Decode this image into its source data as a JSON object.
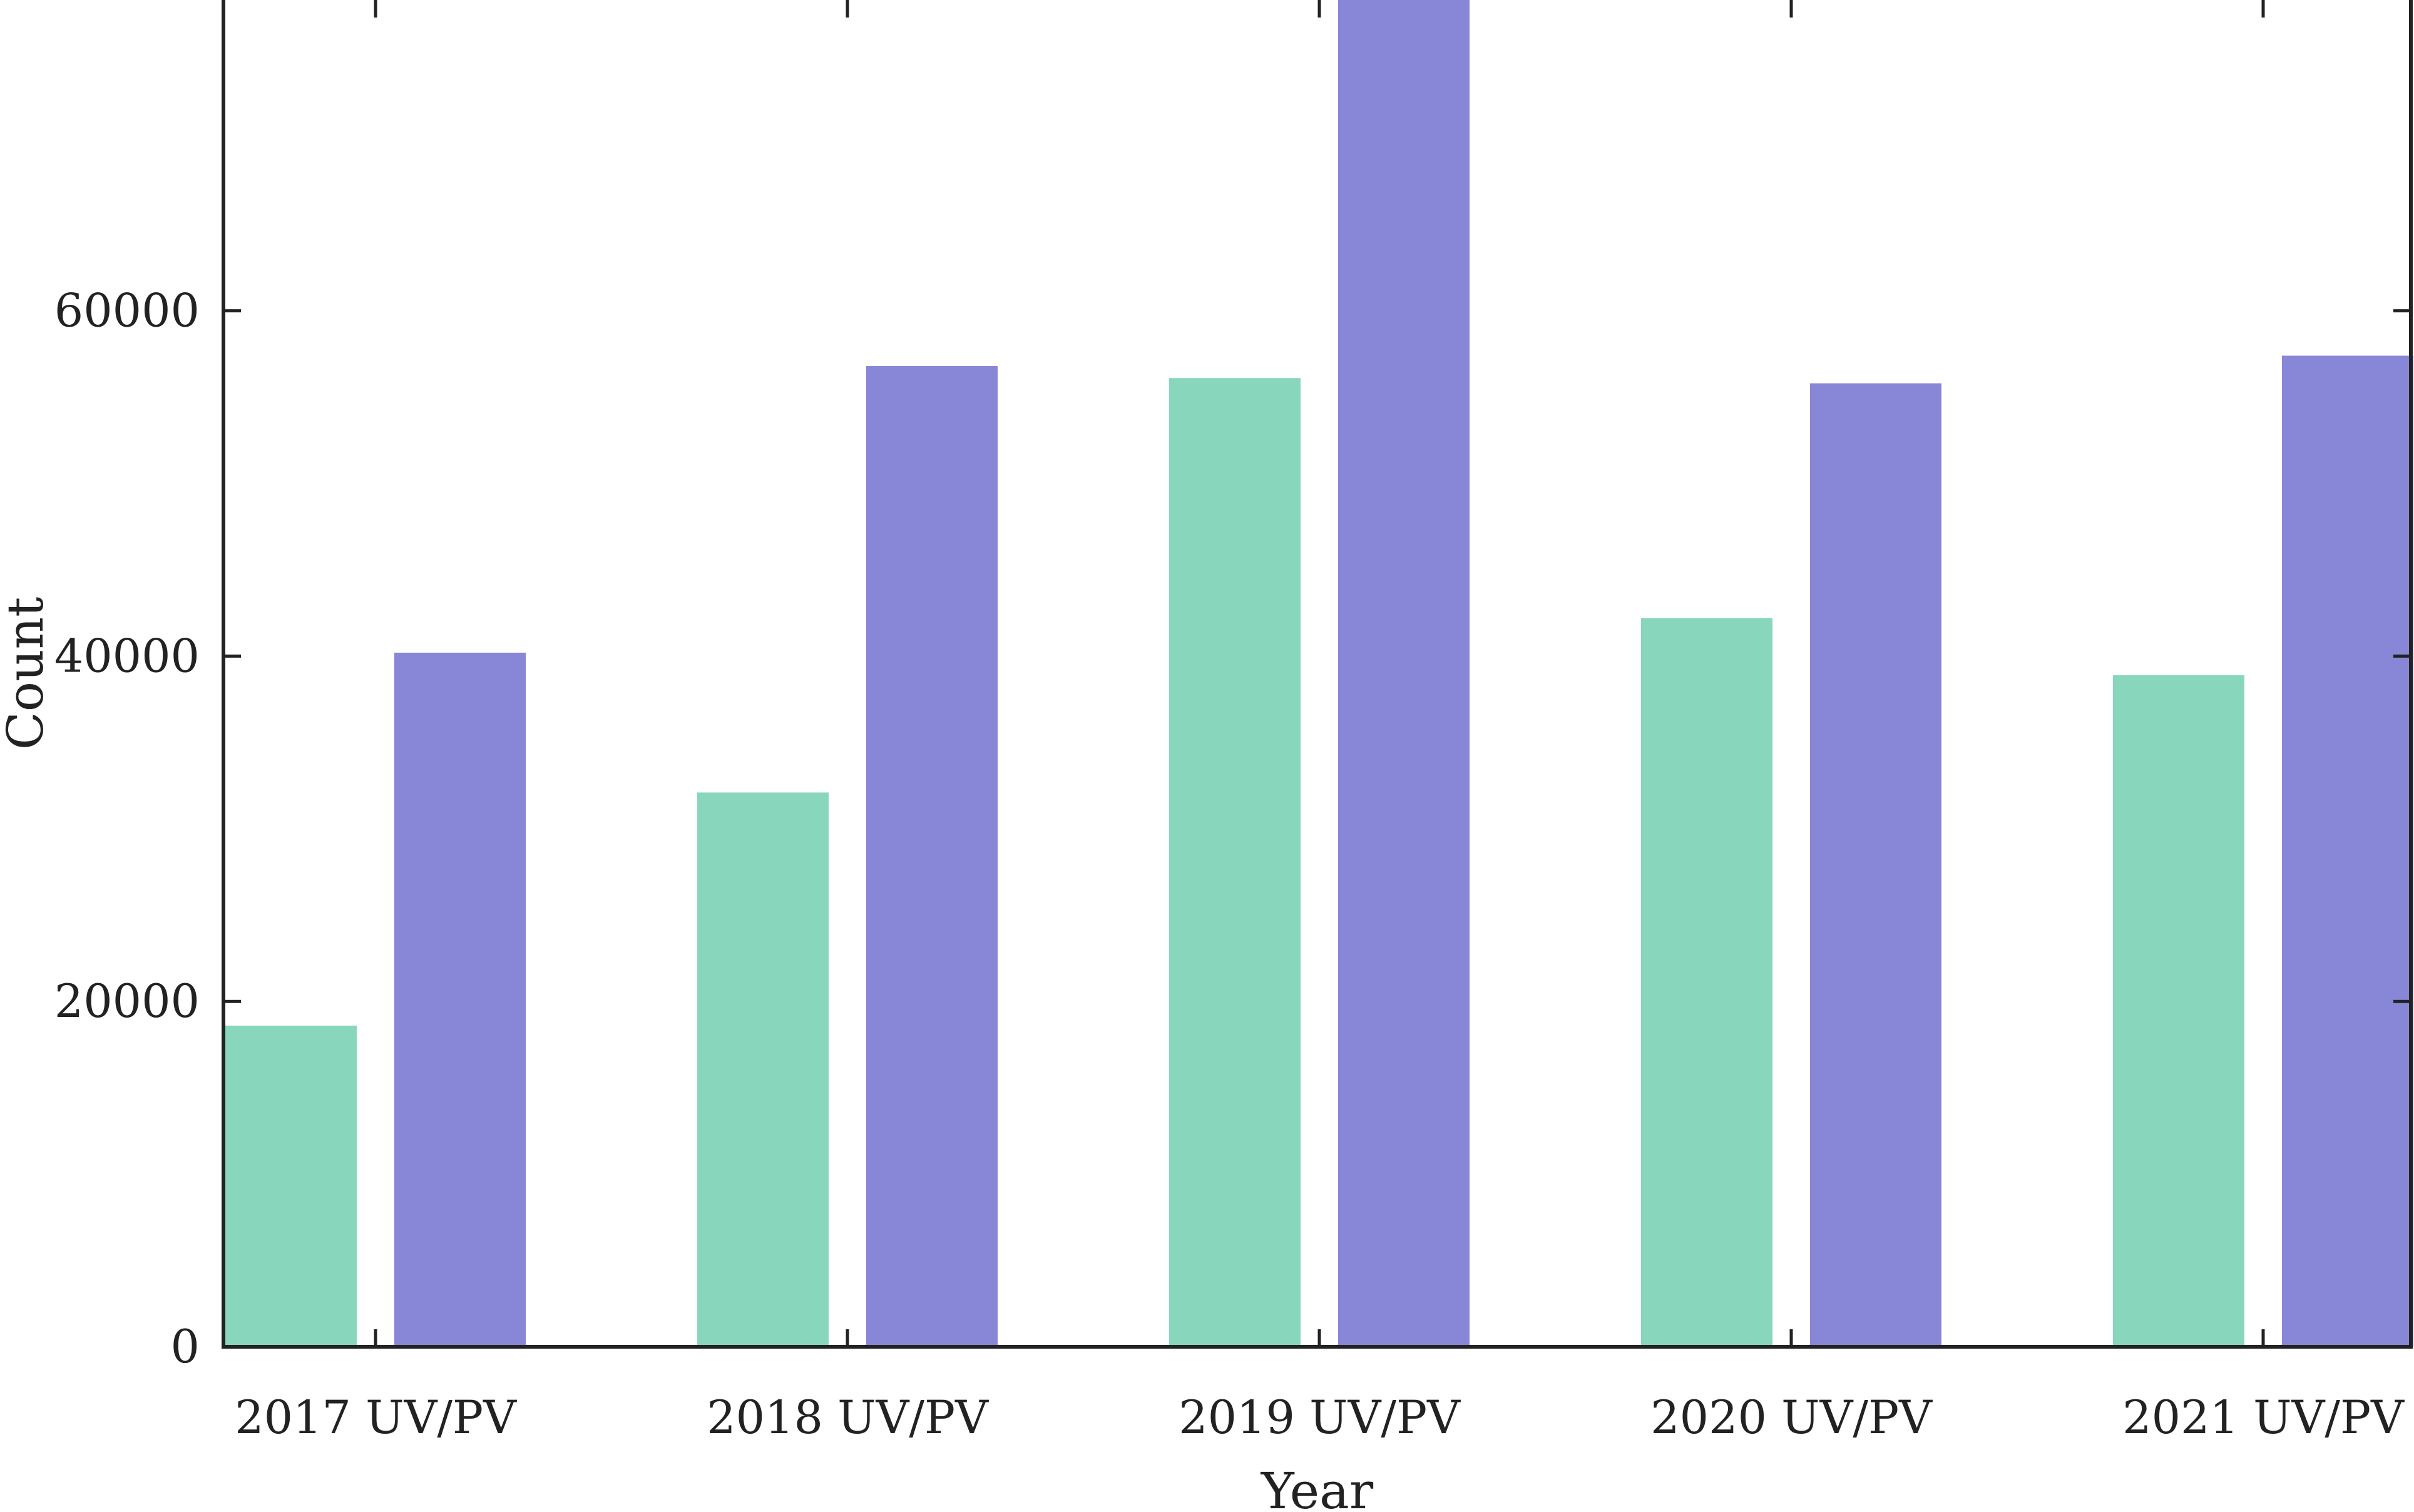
{
  "chart_data": {
    "type": "bar",
    "title": "",
    "xlabel": "Year",
    "ylabel": "Count",
    "categories": [
      "2017 UV/PV",
      "2018 UV/PV",
      "2019 UV/PV",
      "2020 UV/PV",
      "2021 UV/PV"
    ],
    "series": [
      {
        "values": [
          18600,
          32100,
          56100,
          42200,
          38900
        ],
        "color": "#88d6bc"
      },
      {
        "values": [
          40200,
          56800,
          78100,
          55800,
          57400
        ],
        "color": "#8786d7"
      }
    ],
    "ylim": [
      0,
      78000
    ],
    "yticks": [
      0,
      20000,
      40000,
      60000
    ],
    "ytick_labels": [
      "0",
      "20000",
      "40000",
      "60000"
    ],
    "grid": false,
    "legend": "none",
    "axis_color": "#222222"
  }
}
